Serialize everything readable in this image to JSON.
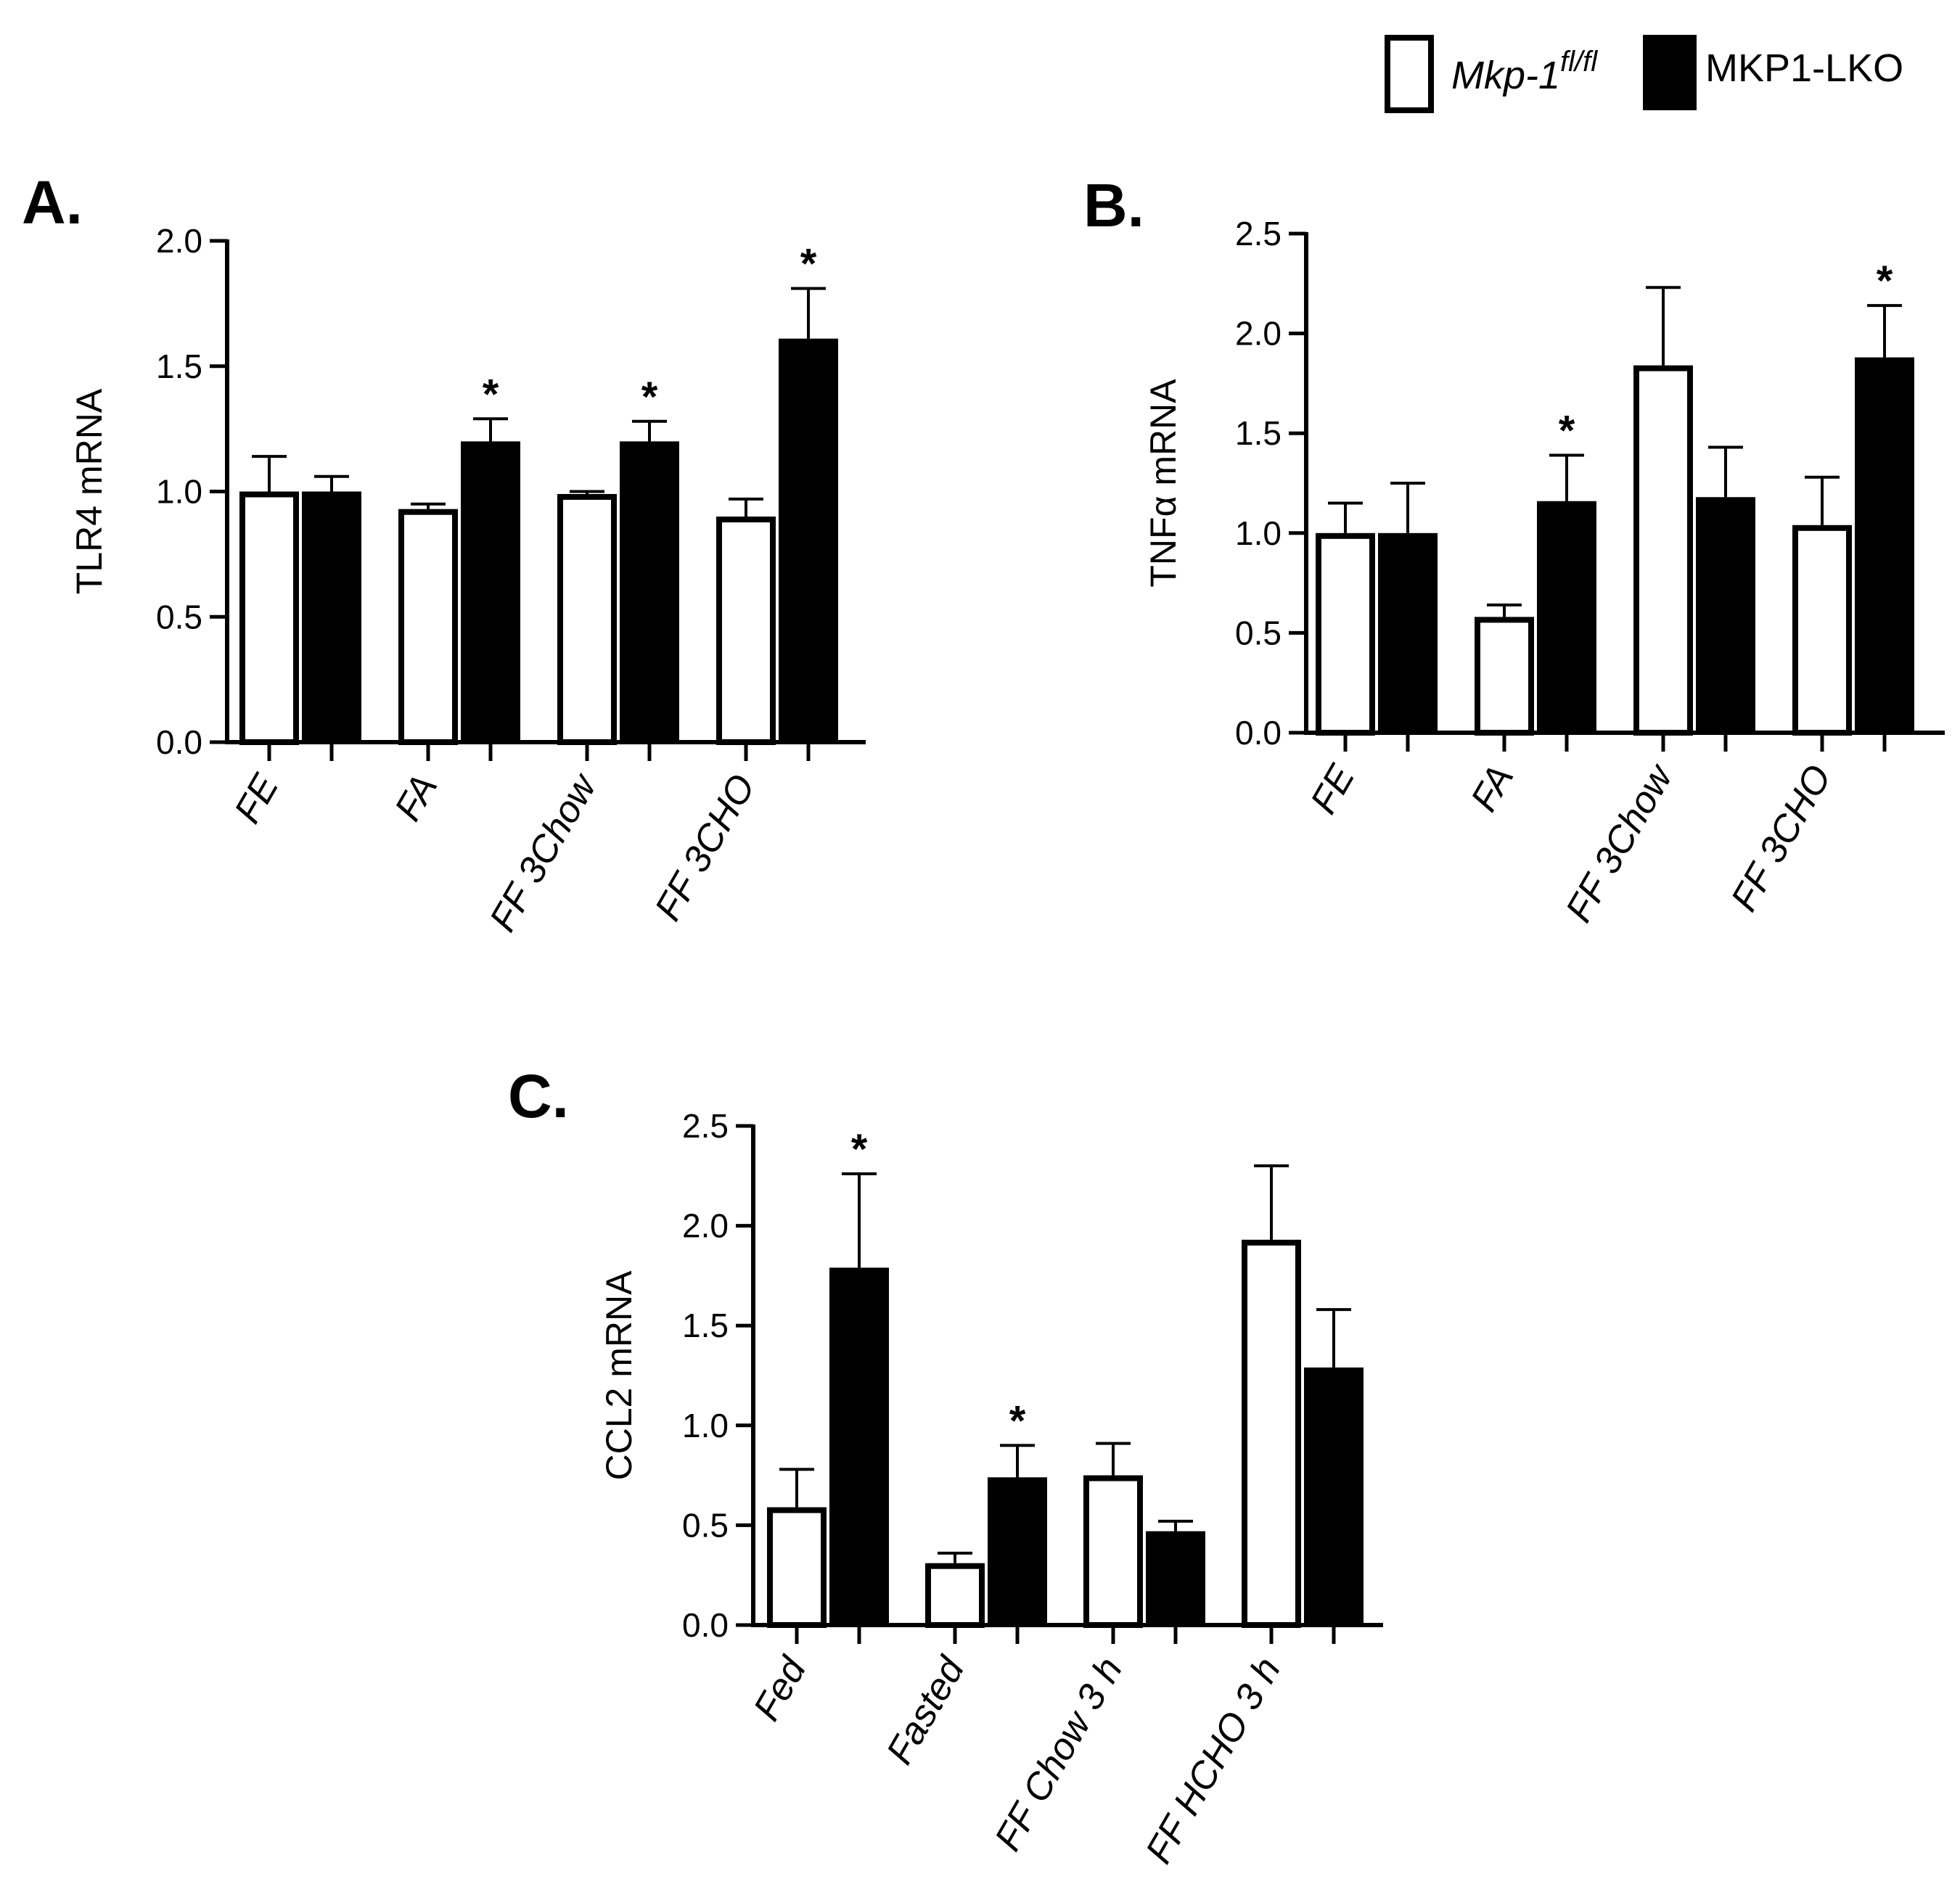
{
  "legend": {
    "series_a": {
      "label": "Mkp-1",
      "superscript": "fl/fl"
    },
    "series_b": {
      "label": "MKP1-LKO"
    }
  },
  "colors": {
    "series_a_fill": "#ffffff",
    "series_b_fill": "#000000",
    "stroke": "#000000"
  },
  "chart_data": [
    {
      "type": "bar",
      "panel": "A.",
      "ylabel": "TLR4 mRNA",
      "ylim": [
        0,
        2.0
      ],
      "yticks": [
        0.0,
        0.5,
        1.0,
        1.5,
        2.0
      ],
      "ytick_labels": [
        "0.0",
        "0.5",
        "1.0",
        "1.5",
        "2.0"
      ],
      "categories": [
        "FE",
        "FA",
        "FF 3Chow",
        "FF 3CHO"
      ],
      "series": [
        {
          "name": "Mkp-1fl/fl",
          "values": [
            1.0,
            0.93,
            0.99,
            0.9
          ],
          "errors": [
            0.14,
            0.02,
            0.01,
            0.07
          ]
        },
        {
          "name": "MKP1-LKO",
          "values": [
            1.0,
            1.2,
            1.2,
            1.61
          ],
          "errors": [
            0.06,
            0.09,
            0.08,
            0.2
          ]
        }
      ],
      "significance": [
        {
          "category": 1,
          "series": 1,
          "mark": "*"
        },
        {
          "category": 2,
          "series": 1,
          "mark": "*"
        },
        {
          "category": 3,
          "series": 1,
          "mark": "*"
        }
      ]
    },
    {
      "type": "bar",
      "panel": "B.",
      "ylabel": "TNFα mRNA",
      "ylim": [
        0,
        2.5
      ],
      "yticks": [
        0.0,
        0.5,
        1.0,
        1.5,
        2.0,
        2.5
      ],
      "ytick_labels": [
        "0.0",
        "0.5",
        "1.0",
        "1.5",
        "2.0",
        "2.5"
      ],
      "categories": [
        "FE",
        "FA",
        "FF 3Chow",
        "FF 3CHO"
      ],
      "series": [
        {
          "name": "Mkp-1fl/fl",
          "values": [
            1.0,
            0.58,
            1.84,
            1.04
          ],
          "errors": [
            0.15,
            0.06,
            0.39,
            0.24
          ]
        },
        {
          "name": "MKP1-LKO",
          "values": [
            1.0,
            1.16,
            1.18,
            1.88
          ],
          "errors": [
            0.25,
            0.23,
            0.25,
            0.26
          ]
        }
      ],
      "significance": [
        {
          "category": 1,
          "series": 1,
          "mark": "*"
        },
        {
          "category": 3,
          "series": 1,
          "mark": "*"
        }
      ]
    },
    {
      "type": "bar",
      "panel": "C.",
      "ylabel": "CCL2 mRNA",
      "ylim": [
        0,
        2.5
      ],
      "yticks": [
        0.0,
        0.5,
        1.0,
        1.5,
        2.0,
        2.5
      ],
      "ytick_labels": [
        "0.0",
        "0.5",
        "1.0",
        "1.5",
        "2.0",
        "2.5"
      ],
      "categories": [
        "Fed",
        "Fasted",
        "FF Chow 3 h",
        "FF HCHO 3 h"
      ],
      "series": [
        {
          "name": "Mkp-1fl/fl",
          "values": [
            0.59,
            0.31,
            0.75,
            1.93
          ],
          "errors": [
            0.19,
            0.05,
            0.16,
            0.37
          ]
        },
        {
          "name": "MKP1-LKO",
          "values": [
            1.79,
            0.74,
            0.47,
            1.29
          ],
          "errors": [
            0.47,
            0.16,
            0.05,
            0.29
          ]
        }
      ],
      "significance": [
        {
          "category": 0,
          "series": 1,
          "mark": "*"
        },
        {
          "category": 1,
          "series": 1,
          "mark": "*"
        }
      ]
    }
  ]
}
